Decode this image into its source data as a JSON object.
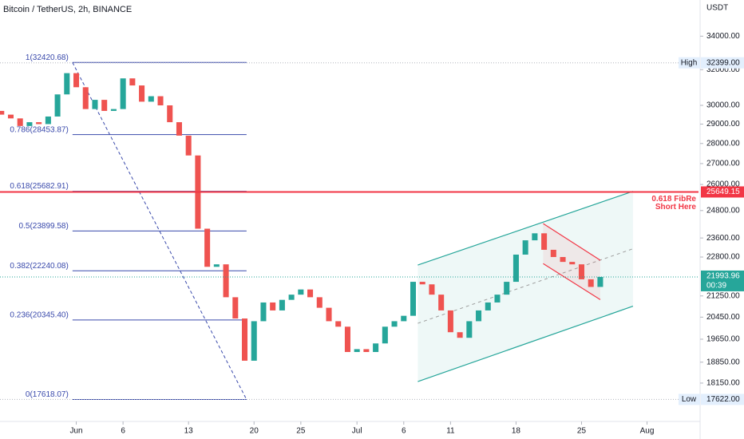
{
  "chart_data": {
    "type": "candlestick",
    "title": "Bitcoin / TetherUS, 2h, BINANCE",
    "y_axis_label": "USDT",
    "log_scale": true,
    "up_color": "#26a69a",
    "down_color": "#ef5350",
    "x": [
      144,
      145,
      146,
      147,
      148,
      149,
      150,
      151,
      152,
      153,
      154,
      155,
      156,
      157,
      158,
      159,
      160,
      161,
      162,
      163,
      164,
      165,
      166,
      167,
      168,
      169,
      170,
      171,
      172,
      173,
      174,
      175,
      176,
      177,
      178,
      179,
      180,
      181,
      182,
      183,
      184,
      185,
      186,
      187,
      188,
      189,
      190,
      191,
      192,
      193,
      194,
      195,
      196,
      197,
      198,
      199,
      200,
      201,
      202,
      203,
      204,
      205,
      206,
      207,
      208
    ],
    "open": [
      29700,
      29500,
      29300,
      28900,
      29100,
      29000,
      29400,
      30600,
      31800,
      31000,
      29800,
      30300,
      29700,
      29800,
      31500,
      31100,
      30200,
      30500,
      30000,
      29100,
      28400,
      27400,
      24000,
      22400,
      22500,
      21200,
      20400,
      18900,
      20300,
      21000,
      20700,
      21100,
      21300,
      21500,
      21200,
      20800,
      20300,
      20100,
      19200,
      19300,
      19200,
      19500,
      20100,
      20300,
      20500,
      21800,
      21700,
      21300,
      20700,
      19900,
      19700,
      20300,
      20700,
      21000,
      21300,
      21800,
      22900,
      23500,
      23800,
      23100,
      22800,
      22600,
      22500,
      21900,
      21600
    ],
    "high": {
      "name": "High",
      "value": 32399,
      "label": "32399.00"
    },
    "low": {
      "name": "Low",
      "value": 17622,
      "label": "17622.00"
    },
    "close": [
      29500,
      29300,
      28900,
      29100,
      29000,
      29400,
      30600,
      31800,
      31000,
      29800,
      30300,
      29700,
      29800,
      31500,
      31100,
      30200,
      30500,
      30000,
      29100,
      28400,
      27400,
      24000,
      22400,
      22500,
      21200,
      20400,
      18900,
      20300,
      21000,
      20700,
      21100,
      21300,
      21500,
      21200,
      20800,
      20300,
      20100,
      19200,
      19300,
      19200,
      19500,
      20100,
      20300,
      20500,
      21800,
      21700,
      21300,
      20700,
      19900,
      19700,
      20300,
      20700,
      21000,
      21300,
      21800,
      22900,
      23500,
      23800,
      23100,
      22800,
      22600,
      22500,
      21900,
      21600,
      21993.96
    ],
    "xlim": [
      143.85,
      218.5
    ],
    "xticks": [
      {
        "value": 152,
        "label": "Jun"
      },
      {
        "value": 157,
        "label": "6"
      },
      {
        "value": 164,
        "label": "13"
      },
      {
        "value": 171,
        "label": "20"
      },
      {
        "value": 176,
        "label": "25"
      },
      {
        "value": 182,
        "label": "Jul"
      },
      {
        "value": 187,
        "label": "6"
      },
      {
        "value": 192,
        "label": "11"
      },
      {
        "value": 199,
        "label": "18"
      },
      {
        "value": 206,
        "label": "25"
      },
      {
        "value": 213,
        "label": "Aug"
      }
    ],
    "ylim": [
      17130,
      36300
    ],
    "yticks": [
      {
        "value": 18150,
        "label": "18150.00"
      },
      {
        "value": 18850,
        "label": "18850.00"
      },
      {
        "value": 19650,
        "label": "19650.00"
      },
      {
        "value": 20450,
        "label": "20450.00"
      },
      {
        "value": 21250,
        "label": "21250.00"
      },
      {
        "value": 22800,
        "label": "22800.00"
      },
      {
        "value": 23600,
        "label": "23600.00"
      },
      {
        "value": 24800,
        "label": "24800.00"
      },
      {
        "value": 26000,
        "label": "26000.00"
      },
      {
        "value": 27000,
        "label": "27000.00"
      },
      {
        "value": 28000,
        "label": "28000.00"
      },
      {
        "value": 29000,
        "label": "29000.00"
      },
      {
        "value": 30000,
        "label": "30000.00"
      },
      {
        "value": 32000,
        "label": "32000.00"
      },
      {
        "value": 34000,
        "label": "34000.00"
      }
    ],
    "fib": {
      "color": "#3949ab",
      "x": [
        151.6,
        170.2
      ],
      "levels": [
        {
          "value": 32420.68,
          "label": "1(32420.68)"
        },
        {
          "value": 28453.87,
          "label": "0.786(28453.87)"
        },
        {
          "value": 25682.91,
          "label": "0.618(25682.91)"
        },
        {
          "value": 23899.58,
          "label": "0.5(23899.58)"
        },
        {
          "value": 22240.08,
          "label": "0.382(22240.08)"
        },
        {
          "value": 20345.4,
          "label": "0.236(20345.40)"
        },
        {
          "value": 17618.07,
          "label": "0(17618.07)"
        }
      ]
    },
    "resistance": {
      "value": 25649.15,
      "label": "25649.15",
      "note": [
        "0.618 FibRe",
        "Short Here"
      ],
      "color": "#f23645"
    },
    "last": {
      "value": 21993.96,
      "label": "21993.96",
      "countdown": "00:39",
      "color": "#26a69a"
    },
    "channel": {
      "color": "#26a69a",
      "x": [
        188.5,
        211.5
      ],
      "upper": [
        22470,
        25680
      ],
      "lower": [
        18200,
        20860
      ]
    },
    "flag": {
      "color": "#f23645",
      "x": [
        201.9,
        208
      ],
      "upper": [
        24220,
        22670
      ],
      "lower": [
        22530,
        21110
      ]
    }
  }
}
